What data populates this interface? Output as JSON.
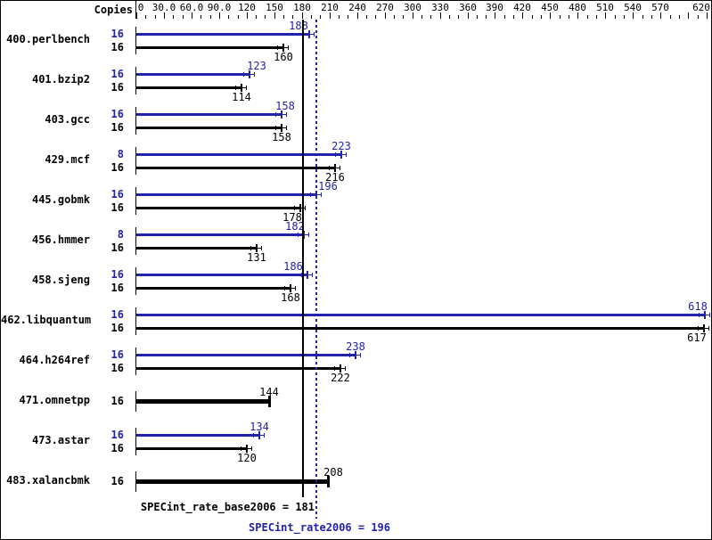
{
  "chart_data": {
    "type": "bar",
    "orientation": "horizontal",
    "title": "",
    "copies_header": "Copies",
    "legend_position": "none",
    "grid": false,
    "series_colors": {
      "peak": "#2222aa",
      "base": "#000000"
    },
    "x_axis": {
      "min": 0,
      "max": 620,
      "minor_tick_step": 10,
      "major_tick_step": 30,
      "tick_labels": [
        {
          "value": 0,
          "label": "0"
        },
        {
          "value": 30,
          "label": "30.0"
        },
        {
          "value": 60,
          "label": "60.0"
        },
        {
          "value": 90,
          "label": "90.0"
        },
        {
          "value": 120,
          "label": "120"
        },
        {
          "value": 150,
          "label": "150"
        },
        {
          "value": 180,
          "label": "180"
        },
        {
          "value": 210,
          "label": "210"
        },
        {
          "value": 240,
          "label": "240"
        },
        {
          "value": 270,
          "label": "270"
        },
        {
          "value": 300,
          "label": "300"
        },
        {
          "value": 330,
          "label": "330"
        },
        {
          "value": 360,
          "label": "360"
        },
        {
          "value": 390,
          "label": "390"
        },
        {
          "value": 420,
          "label": "420"
        },
        {
          "value": 450,
          "label": "450"
        },
        {
          "value": 480,
          "label": "480"
        },
        {
          "value": 510,
          "label": "510"
        },
        {
          "value": 540,
          "label": "540"
        },
        {
          "value": 570,
          "label": "570"
        },
        {
          "value": 620,
          "label": "620"
        }
      ]
    },
    "reference_lines": [
      {
        "name": "base",
        "style": "solid",
        "color": "#000000",
        "value": 181,
        "label": "SPECint_rate_base2006 = 181"
      },
      {
        "name": "peak",
        "style": "dotted",
        "color": "#2222aa",
        "value": 196,
        "label": "SPECint_rate2006 = 196"
      }
    ],
    "benchmarks": [
      {
        "name": "400.perlbench",
        "bars": [
          {
            "series": "peak",
            "copies": 16,
            "value": 188,
            "label_dx": -12
          },
          {
            "series": "base",
            "copies": 16,
            "value": 160
          }
        ]
      },
      {
        "name": "401.bzip2",
        "bars": [
          {
            "series": "peak",
            "copies": 16,
            "value": 123,
            "label_dx": 8
          },
          {
            "series": "base",
            "copies": 16,
            "value": 114
          }
        ]
      },
      {
        "name": "403.gcc",
        "bars": [
          {
            "series": "peak",
            "copies": 16,
            "value": 158,
            "label_dx": 4
          },
          {
            "series": "base",
            "copies": 16,
            "value": 158
          }
        ]
      },
      {
        "name": "429.mcf",
        "bars": [
          {
            "series": "peak",
            "copies": 8,
            "value": 223
          },
          {
            "series": "base",
            "copies": 16,
            "value": 216
          }
        ]
      },
      {
        "name": "445.gobmk",
        "bars": [
          {
            "series": "peak",
            "copies": 16,
            "value": 196,
            "label_dx": 13
          },
          {
            "series": "base",
            "copies": 16,
            "value": 178,
            "label_dx": -9
          }
        ]
      },
      {
        "name": "456.hmmer",
        "bars": [
          {
            "series": "peak",
            "copies": 8,
            "value": 182,
            "label_dx": -10
          },
          {
            "series": "base",
            "copies": 16,
            "value": 131
          }
        ]
      },
      {
        "name": "458.sjeng",
        "bars": [
          {
            "series": "peak",
            "copies": 16,
            "value": 186,
            "label_dx": -16
          },
          {
            "series": "base",
            "copies": 16,
            "value": 168
          }
        ]
      },
      {
        "name": "462.libquantum",
        "bars": [
          {
            "series": "peak",
            "copies": 16,
            "value": 618,
            "label_dx": -8
          },
          {
            "series": "base",
            "copies": 16,
            "value": 617,
            "label_dx": -8
          }
        ]
      },
      {
        "name": "464.h264ref",
        "bars": [
          {
            "series": "peak",
            "copies": 16,
            "value": 238
          },
          {
            "series": "base",
            "copies": 16,
            "value": 222
          }
        ]
      },
      {
        "name": "471.omnetpp",
        "bars": [
          {
            "series": "base",
            "copies": 16,
            "value": 144,
            "single": true
          }
        ]
      },
      {
        "name": "473.astar",
        "bars": [
          {
            "series": "peak",
            "copies": 16,
            "value": 134
          },
          {
            "series": "base",
            "copies": 16,
            "value": 120
          }
        ]
      },
      {
        "name": "483.xalancbmk",
        "bars": [
          {
            "series": "base",
            "copies": 16,
            "value": 208,
            "single": true,
            "label_dx": 6
          }
        ]
      }
    ]
  }
}
